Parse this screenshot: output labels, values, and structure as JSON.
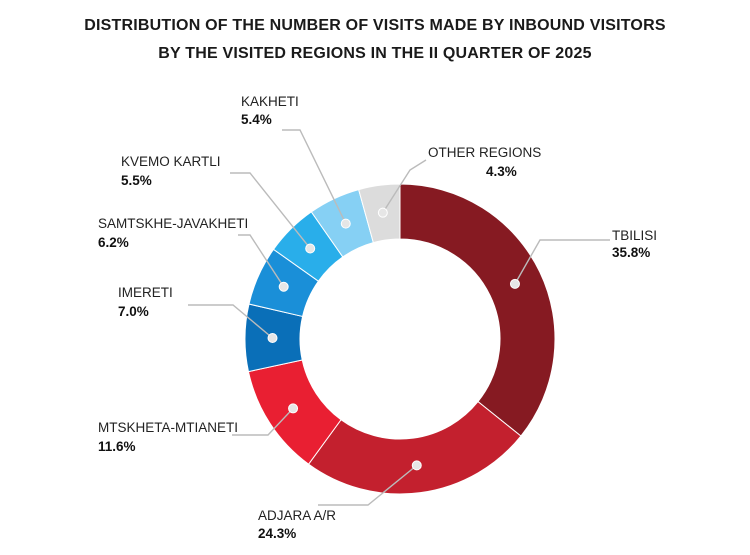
{
  "chart_data": {
    "type": "pie",
    "variant": "donut",
    "title_lines": [
      "DISTRIBUTION OF THE NUMBER OF VISITS MADE BY INBOUND VISITORS",
      "BY THE VISITED REGIONS IN THE II QUARTER OF 2025"
    ],
    "unit": "%",
    "slices": [
      {
        "label": "TBILISI",
        "value": 35.8,
        "display": "35.8%",
        "color": "#861a22"
      },
      {
        "label": "ADJARA A/R",
        "value": 24.3,
        "display": "24.3%",
        "color": "#c3202e"
      },
      {
        "label": "MTSKHETA-MTIANETI",
        "value": 11.6,
        "display": "11.6%",
        "color": "#e91f32"
      },
      {
        "label": "IMERETI",
        "value": 7.0,
        "display": "7.0%",
        "color": "#0a6fb8"
      },
      {
        "label": "SAMTSKHE-JAVAKHETI",
        "value": 6.2,
        "display": "6.2%",
        "color": "#1a8fd8"
      },
      {
        "label": "KVEMO KARTLI",
        "value": 5.5,
        "display": "5.5%",
        "color": "#29aeea"
      },
      {
        "label": "KAKHETI",
        "value": 5.4,
        "display": "5.4%",
        "color": "#86d0f4"
      },
      {
        "label": "OTHER REGIONS",
        "value": 4.3,
        "display": "4.3%",
        "color": "#dcdcdc"
      }
    ]
  }
}
